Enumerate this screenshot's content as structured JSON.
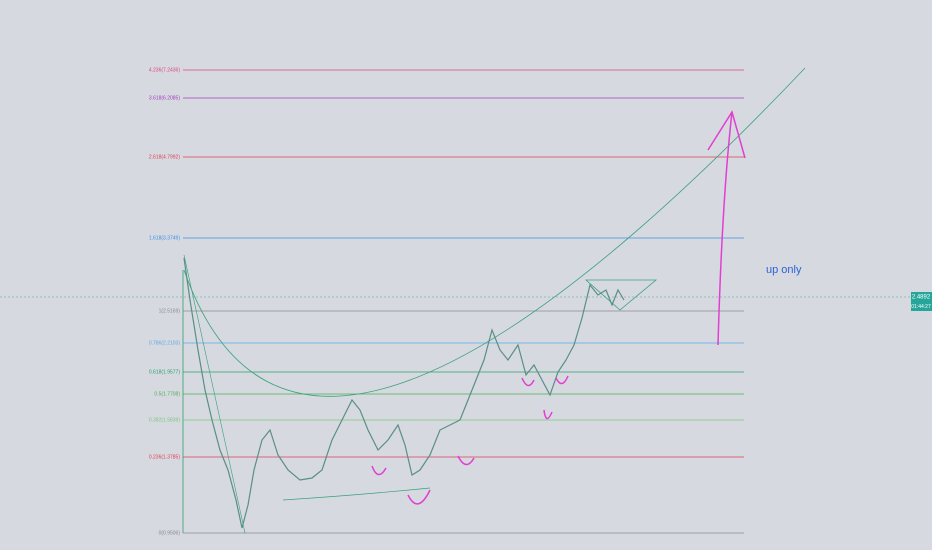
{
  "fib_levels": [
    {
      "label": "4.236(7.2436)"
    },
    {
      "label": "3.618(6.2085)"
    },
    {
      "label": "2.618(4.7992)"
    },
    {
      "label": "1.618(3.3749)"
    },
    {
      "label": "1(2.5169)"
    },
    {
      "label": "0.786(2.2103)"
    },
    {
      "label": "0.618(1.9577)"
    },
    {
      "label": "0.5(1.7708)"
    },
    {
      "label": "0.382(1.5839)"
    },
    {
      "label": "0.236(1.3785)"
    },
    {
      "label": "0(0.9506)"
    }
  ],
  "annotation": "up only",
  "price_badge": {
    "price": "2.4892",
    "timer": "01:44:27"
  }
}
